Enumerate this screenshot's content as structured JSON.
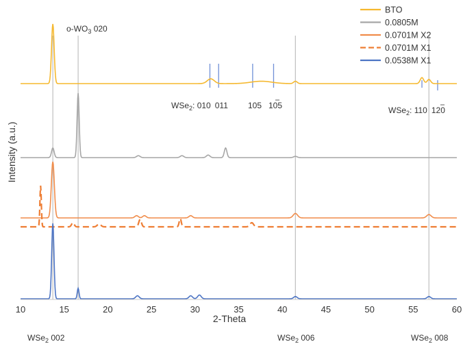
{
  "chart_data": {
    "type": "line",
    "xlabel": "2-Theta",
    "ylabel": "Intensity (a.u.)",
    "xlim": [
      10,
      60
    ],
    "xticks": [
      "10",
      "15",
      "20",
      "25",
      "30",
      "35",
      "40",
      "45",
      "50",
      "55",
      "60"
    ],
    "legend_position": "top-right",
    "grid": false,
    "colors": {
      "BTO": "#f5b82e",
      "s0805": "#a6a6a6",
      "s0701x2": "#f08c4a",
      "s0701x1": "#ee7d33",
      "s0538": "#4c74c4",
      "ref_gray": "#bfbfbf",
      "ref_blue": "#6f8fd6"
    },
    "legend": [
      "BTO",
      "0.0805M",
      "0.0701M X2",
      "0.0701M X1",
      "0.0538M X1"
    ],
    "series": [
      {
        "name": "BTO",
        "key": "BTO",
        "dashed": false,
        "baseline_y": 0.0,
        "peaks": [
          [
            13.7,
            1.0,
            0.15
          ],
          [
            31.8,
            0.08,
            0.4
          ],
          [
            37.6,
            0.04,
            1.2
          ],
          [
            41.5,
            0.04,
            0.2
          ],
          [
            56.0,
            0.1,
            0.2
          ],
          [
            56.8,
            0.07,
            0.2
          ]
        ]
      },
      {
        "name": "0.0805M",
        "key": "s0805",
        "dashed": false,
        "baseline_y": 0.0,
        "peaks": [
          [
            13.7,
            0.15,
            0.15
          ],
          [
            16.6,
            1.0,
            0.12
          ],
          [
            23.5,
            0.03,
            0.2
          ],
          [
            28.5,
            0.03,
            0.2
          ],
          [
            31.5,
            0.04,
            0.2
          ],
          [
            33.5,
            0.15,
            0.15
          ],
          [
            41.5,
            0.02,
            0.2
          ]
        ]
      },
      {
        "name": "0.0701M X2",
        "key": "s0701x2",
        "dashed": false,
        "baseline_y": 0.0,
        "peaks": [
          [
            13.7,
            1.0,
            0.17
          ],
          [
            23.3,
            0.04,
            0.2
          ],
          [
            24.2,
            0.04,
            0.2
          ],
          [
            29.5,
            0.04,
            0.2
          ],
          [
            41.5,
            0.08,
            0.25
          ],
          [
            56.8,
            0.06,
            0.25
          ]
        ]
      },
      {
        "name": "0.0701M X1",
        "key": "s0701x1",
        "dashed": true,
        "baseline_y": 0.0,
        "peaks": [
          [
            12.3,
            1.0,
            0.08
          ],
          [
            16.0,
            0.1,
            0.15
          ],
          [
            19.0,
            0.07,
            0.2
          ],
          [
            23.7,
            0.18,
            0.15
          ],
          [
            28.3,
            0.2,
            0.12
          ],
          [
            36.5,
            0.1,
            0.2
          ]
        ]
      },
      {
        "name": "0.0538M X1",
        "key": "s0538",
        "dashed": false,
        "baseline_y": 0.0,
        "peaks": [
          [
            13.7,
            1.0,
            0.13
          ],
          [
            16.6,
            0.14,
            0.1
          ],
          [
            23.4,
            0.04,
            0.2
          ],
          [
            29.5,
            0.04,
            0.2
          ],
          [
            30.5,
            0.05,
            0.2
          ],
          [
            41.5,
            0.03,
            0.2
          ],
          [
            56.8,
            0.03,
            0.2
          ]
        ]
      }
    ],
    "reference_lines_gray": [
      13.7,
      16.6,
      41.5,
      56.8
    ],
    "reference_lines_blue": [
      31.7,
      32.7,
      36.6,
      39.0,
      56.0,
      57.8
    ],
    "annotations": {
      "wo3_020": "o-WO",
      "wo3_020_sub": "3",
      "wo3_020_index": " 020",
      "wse2_prefix": "WSe",
      "wse2_sub": "2",
      "wse2_010": ": 010",
      "wse2_011": "011",
      "wse2_105": "105",
      "wse2_105b": "105",
      "wse2_110": ": 110",
      "wse2_120": "120",
      "wse2_002": " 002",
      "wse2_006": " 006",
      "wse2_008": " 008"
    }
  }
}
